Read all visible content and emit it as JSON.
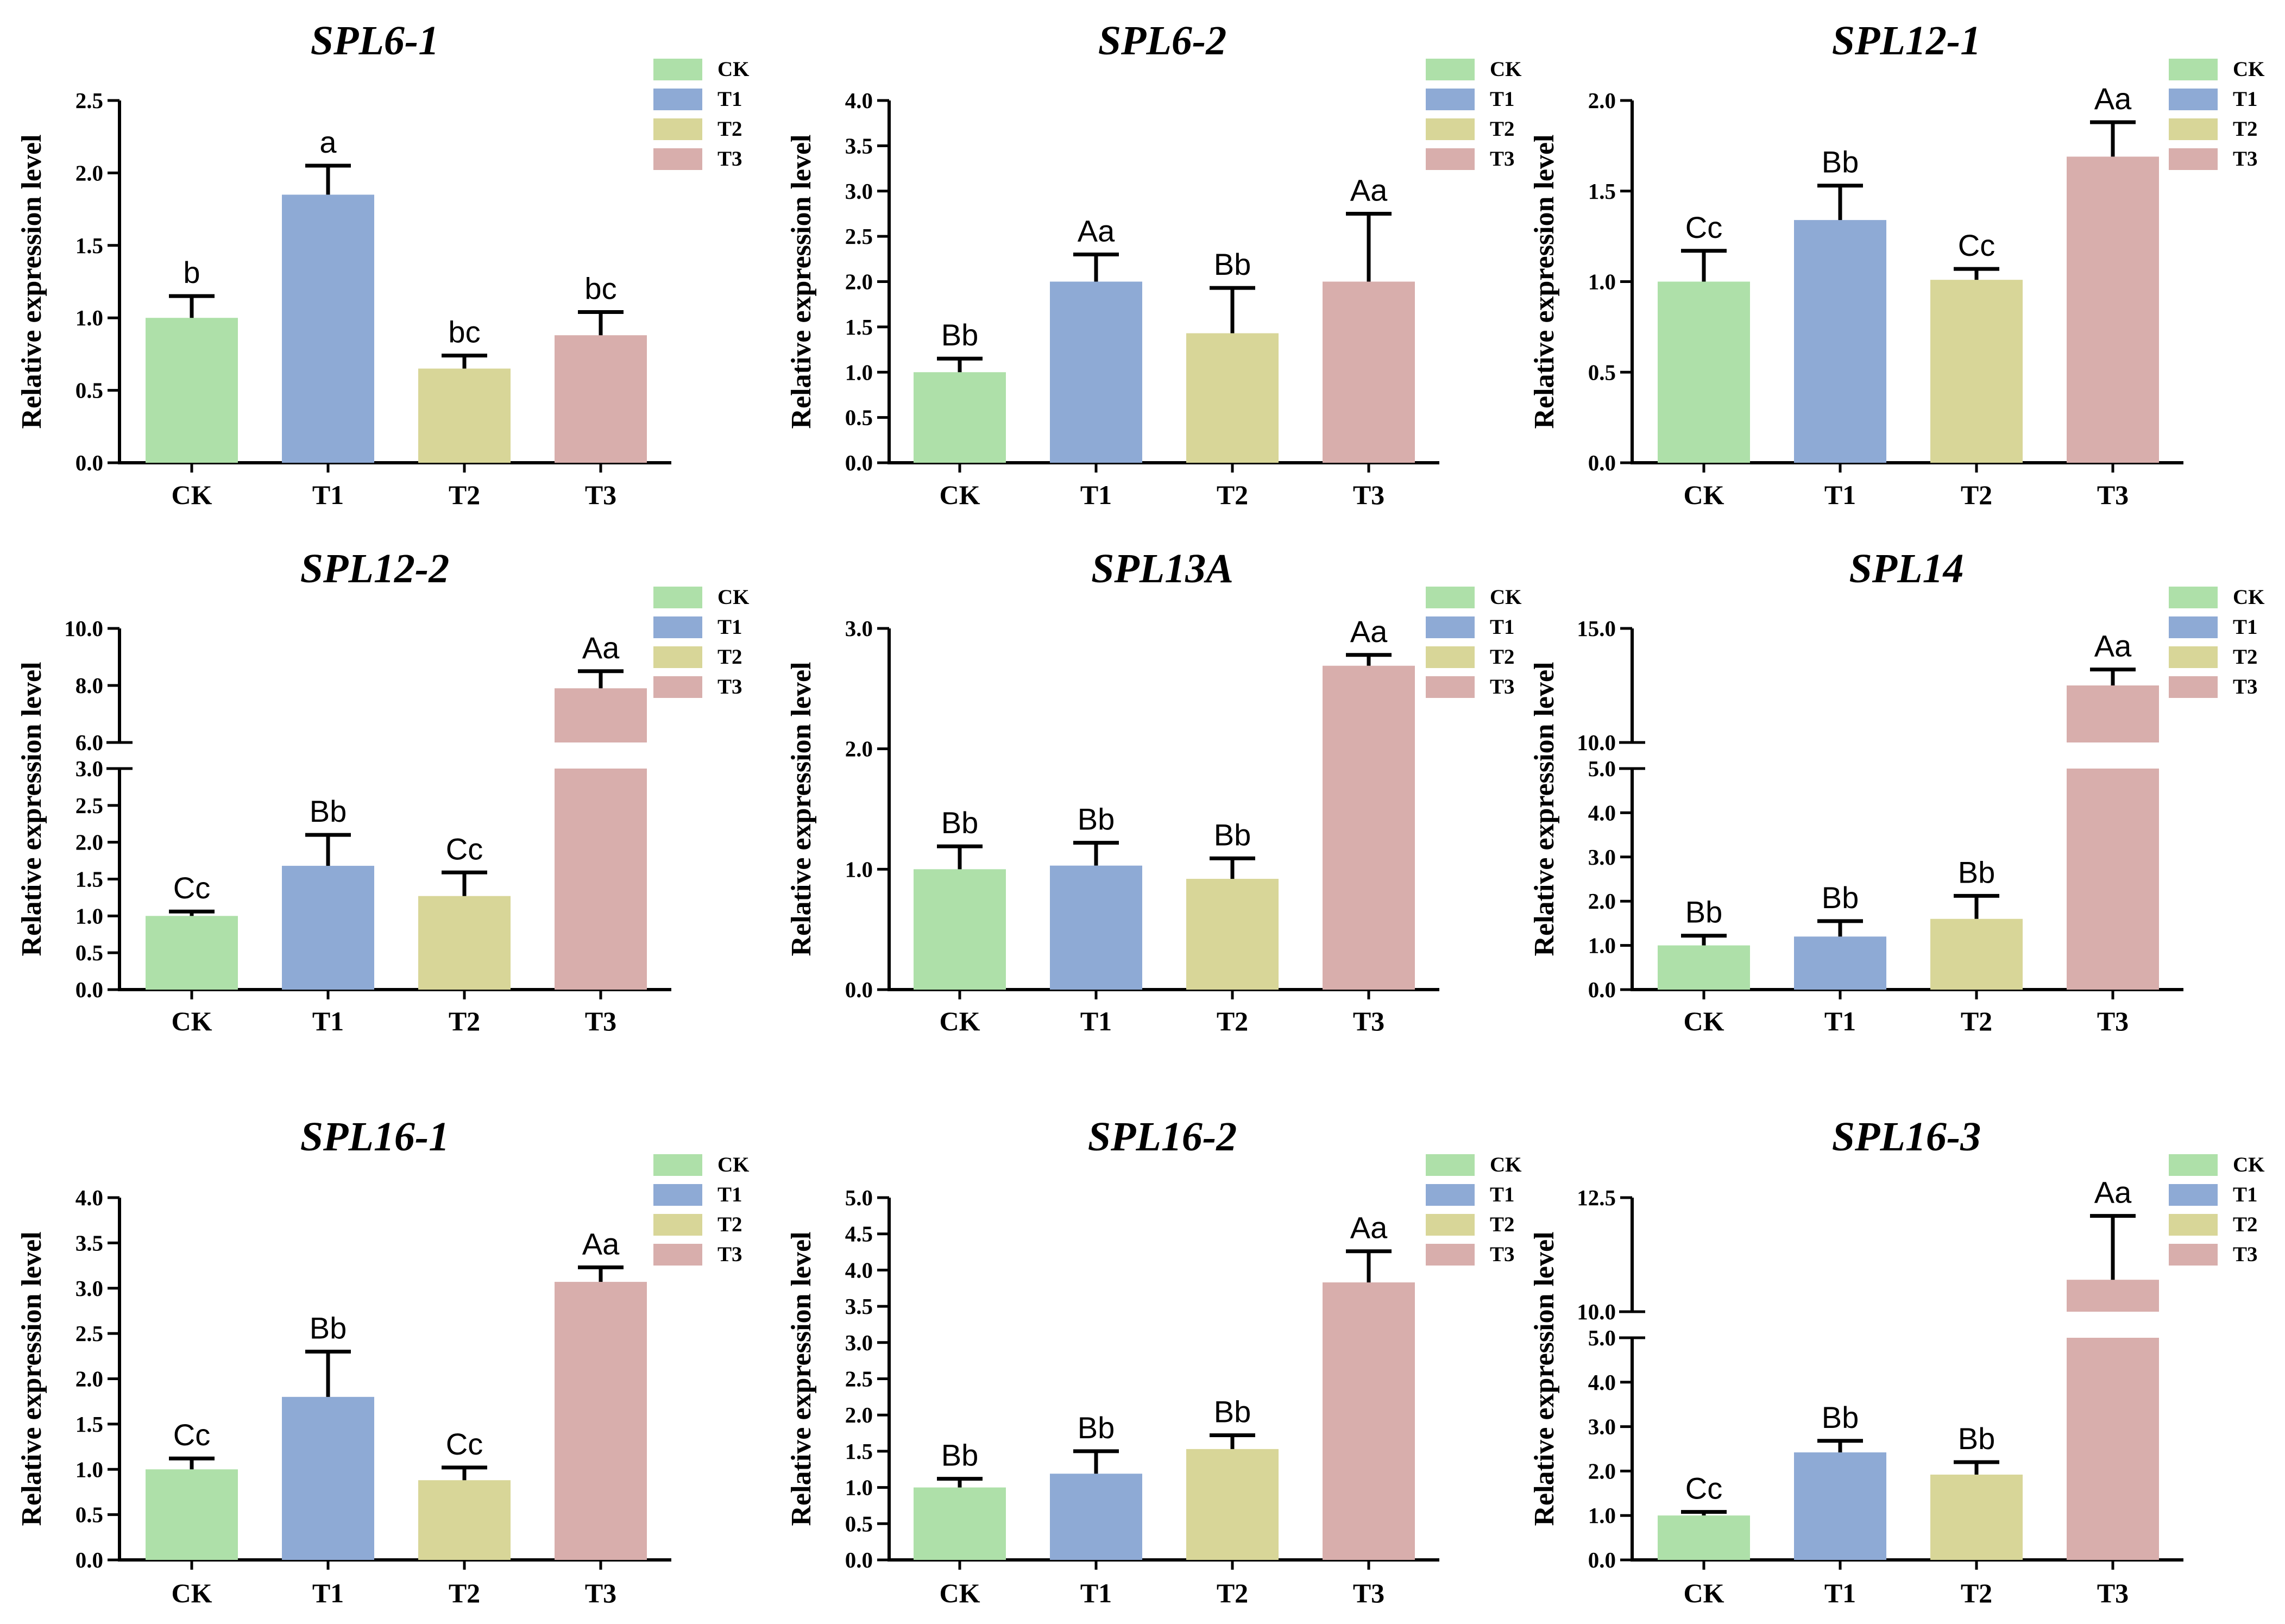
{
  "chart_data": [
    {
      "type": "bar",
      "title": "SPL6-1",
      "ylabel": "Relative expression level",
      "categories": [
        "CK",
        "T1",
        "T2",
        "T3"
      ],
      "values": [
        1.0,
        1.85,
        0.65,
        0.88
      ],
      "errors": [
        0.15,
        0.2,
        0.09,
        0.16
      ],
      "significance": [
        "b",
        "a",
        "bc",
        "bc"
      ],
      "ylim": [
        0,
        2.5
      ],
      "yticks": [
        "0.0",
        "0.5",
        "1.0",
        "1.5",
        "2.0",
        "2.5"
      ],
      "legend": [
        "CK",
        "T1",
        "T2",
        "T3"
      ]
    },
    {
      "type": "bar",
      "title": "SPL6-2",
      "ylabel": "Relative expression level",
      "categories": [
        "CK",
        "T1",
        "T2",
        "T3"
      ],
      "values": [
        1.0,
        2.0,
        1.43,
        2.0
      ],
      "errors": [
        0.15,
        0.3,
        0.5,
        0.75
      ],
      "significance": [
        "Bb",
        "Aa",
        "Bb",
        "Aa"
      ],
      "ylim": [
        0,
        4.0
      ],
      "yticks": [
        "0.0",
        "0.5",
        "1.0",
        "1.5",
        "2.0",
        "2.5",
        "3.0",
        "3.5",
        "4.0"
      ],
      "legend": [
        "CK",
        "T1",
        "T2",
        "T3"
      ]
    },
    {
      "type": "bar",
      "title": "SPL12-1",
      "ylabel": "Relative expression level",
      "categories": [
        "CK",
        "T1",
        "T2",
        "T3"
      ],
      "values": [
        1.0,
        1.34,
        1.01,
        1.69
      ],
      "errors": [
        0.17,
        0.19,
        0.06,
        0.19
      ],
      "significance": [
        "Cc",
        "Bb",
        "Cc",
        "Aa"
      ],
      "ylim": [
        0,
        2.0
      ],
      "yticks": [
        "0.0",
        "0.5",
        "1.0",
        "1.5",
        "2.0"
      ],
      "legend": [
        "CK",
        "T1",
        "T2",
        "T3"
      ]
    },
    {
      "type": "bar",
      "title": "SPL12-2",
      "ylabel": "Relative expression level",
      "categories": [
        "CK",
        "T1",
        "T2",
        "T3"
      ],
      "values": [
        1.0,
        1.68,
        1.27,
        7.9
      ],
      "errors": [
        0.06,
        0.42,
        0.32,
        0.6
      ],
      "significance": [
        "Cc",
        "Bb",
        "Cc",
        "Aa"
      ],
      "broken_axis": true,
      "ylim": [
        0,
        10.0
      ],
      "lower_segment": [
        0,
        3.0
      ],
      "upper_segment": [
        6.0,
        10.0
      ],
      "lower_ticks": [
        "0.0",
        "0.5",
        "1.0",
        "1.5",
        "2.0",
        "2.5",
        "3.0"
      ],
      "upper_ticks": [
        "6.0",
        "8.0",
        "10.0"
      ],
      "legend": [
        "CK",
        "T1",
        "T2",
        "T3"
      ]
    },
    {
      "type": "bar",
      "title": "SPL13A",
      "ylabel": "Relative expression level",
      "categories": [
        "CK",
        "T1",
        "T2",
        "T3"
      ],
      "values": [
        1.0,
        1.03,
        0.92,
        2.69
      ],
      "errors": [
        0.19,
        0.19,
        0.17,
        0.09
      ],
      "significance": [
        "Bb",
        "Bb",
        "Bb",
        "Aa"
      ],
      "ylim": [
        0,
        3.0
      ],
      "yticks": [
        "0.0",
        "1.0",
        "2.0",
        "3.0"
      ],
      "legend": [
        "CK",
        "T1",
        "T2",
        "T3"
      ]
    },
    {
      "type": "bar",
      "title": "SPL14",
      "ylabel": "Relative expression level",
      "categories": [
        "CK",
        "T1",
        "T2",
        "T3"
      ],
      "values": [
        1.0,
        1.2,
        1.6,
        12.5
      ],
      "errors": [
        0.22,
        0.35,
        0.52,
        0.7
      ],
      "significance": [
        "Bb",
        "Bb",
        "Bb",
        "Aa"
      ],
      "broken_axis": true,
      "ylim": [
        0,
        15.0
      ],
      "lower_segment": [
        0,
        5.0
      ],
      "upper_segment": [
        10.0,
        15.0
      ],
      "lower_ticks": [
        "0.0",
        "1.0",
        "2.0",
        "3.0",
        "4.0",
        "5.0"
      ],
      "upper_ticks": [
        "10.0",
        "15.0"
      ],
      "legend": [
        "CK",
        "T1",
        "T2",
        "T3"
      ]
    },
    {
      "type": "bar",
      "title": "SPL16-1",
      "ylabel": "Relative expression level",
      "categories": [
        "CK",
        "T1",
        "T2",
        "T3"
      ],
      "values": [
        1.0,
        1.8,
        0.88,
        3.07
      ],
      "errors": [
        0.12,
        0.5,
        0.14,
        0.16
      ],
      "significance": [
        "Cc",
        "Bb",
        "Cc",
        "Aa"
      ],
      "ylim": [
        0,
        4.0
      ],
      "yticks": [
        "0.0",
        "0.5",
        "1.0",
        "1.5",
        "2.0",
        "2.5",
        "3.0",
        "3.5",
        "4.0"
      ],
      "legend": [
        "CK",
        "T1",
        "T2",
        "T3"
      ]
    },
    {
      "type": "bar",
      "title": "SPL16-2",
      "ylabel": "Relative expression level",
      "categories": [
        "CK",
        "T1",
        "T2",
        "T3"
      ],
      "values": [
        1.0,
        1.19,
        1.53,
        3.83
      ],
      "errors": [
        0.12,
        0.31,
        0.19,
        0.43
      ],
      "significance": [
        "Bb",
        "Bb",
        "Bb",
        "Aa"
      ],
      "ylim": [
        0,
        5.0
      ],
      "yticks": [
        "0.0",
        "0.5",
        "1.0",
        "1.5",
        "2.0",
        "2.5",
        "3.0",
        "3.5",
        "4.0",
        "4.5",
        "5.0"
      ],
      "legend": [
        "CK",
        "T1",
        "T2",
        "T3"
      ]
    },
    {
      "type": "bar",
      "title": "SPL16-3",
      "ylabel": "Relative expression level",
      "categories": [
        "CK",
        "T1",
        "T2",
        "T3"
      ],
      "values": [
        1.0,
        2.42,
        1.92,
        10.7
      ],
      "errors": [
        0.08,
        0.26,
        0.28,
        1.4
      ],
      "significance": [
        "Cc",
        "Bb",
        "Bb",
        "Aa"
      ],
      "broken_axis": true,
      "ylim": [
        0,
        12.5
      ],
      "lower_segment": [
        0,
        5.0
      ],
      "upper_segment": [
        10.0,
        12.5
      ],
      "lower_ticks": [
        "0.0",
        "1.0",
        "2.0",
        "3.0",
        "4.0",
        "5.0"
      ],
      "upper_ticks": [
        "10.0",
        "12.5"
      ],
      "legend": [
        "CK",
        "T1",
        "T2",
        "T3"
      ]
    }
  ],
  "colors": {
    "CK": "#aee0a9",
    "T1": "#8eaad5",
    "T2": "#d8d698",
    "T3": "#d8aeac"
  }
}
